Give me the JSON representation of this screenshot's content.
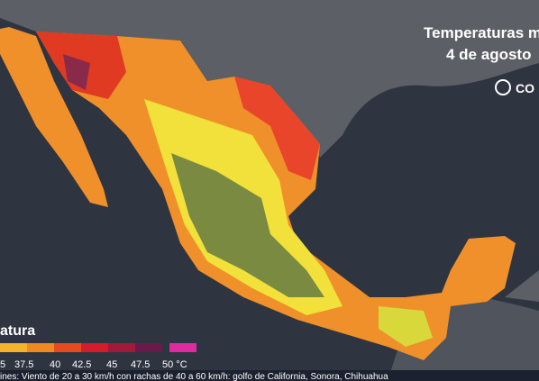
{
  "header": {
    "title_line1": "Temperaturas m",
    "title_line2": "4 de agosto",
    "logo": "CO"
  },
  "legend": {
    "title": "atura",
    "labels": [
      "5",
      "37.5",
      "40",
      "42.5",
      "45",
      "47.5",
      "50 °C"
    ]
  },
  "ticker": {
    "text": "ines: Viento de 20 a 30 km/h con rachas de 40 a 60 km/h: golfo de California, Sonora, Chihuahua"
  }
}
